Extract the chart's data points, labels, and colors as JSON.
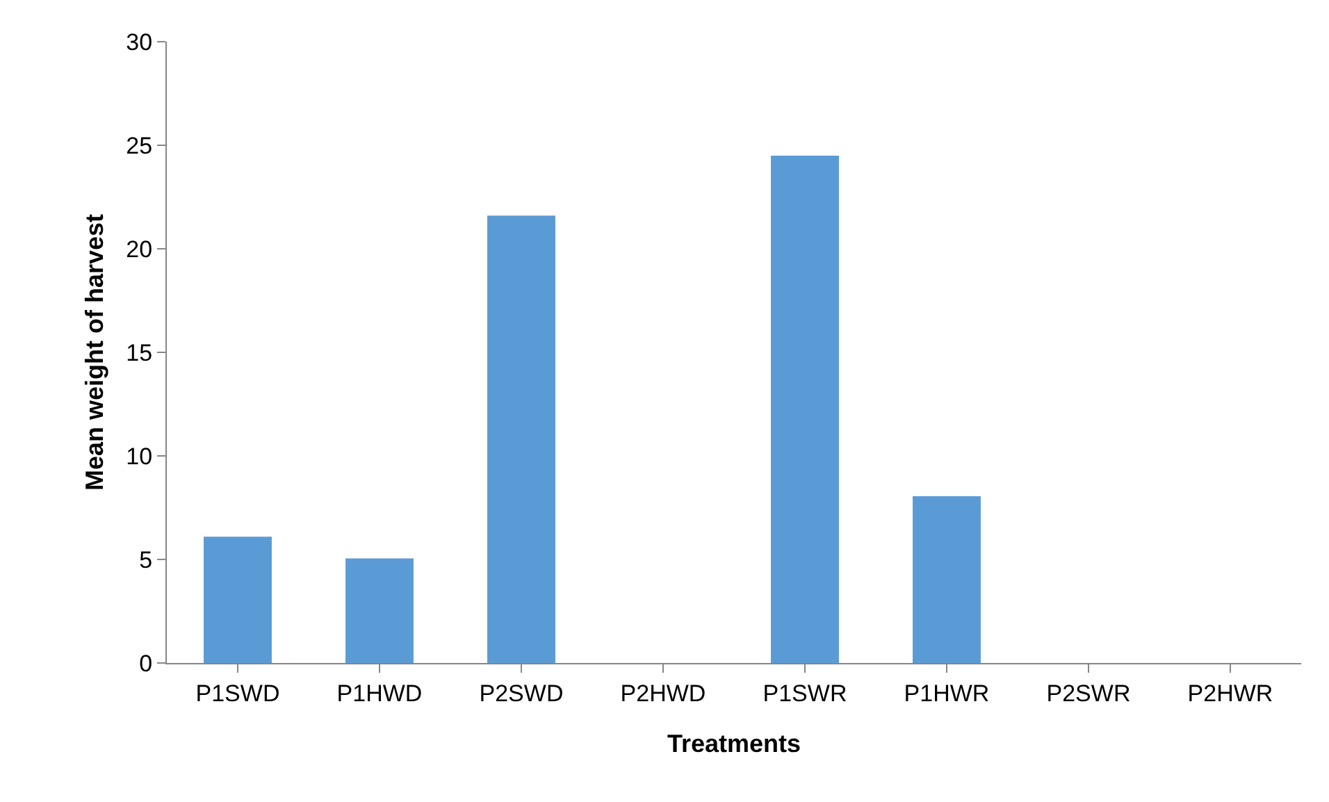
{
  "chart_data": {
    "type": "bar",
    "xlabel": "Treatments",
    "ylabel": "Mean weight of harvest",
    "categories": [
      "P1SWD",
      "P1HWD",
      "P2SWD",
      "P2HWD",
      "P1SWR",
      "P1HWR",
      "P2SWR",
      "P2HWR"
    ],
    "values": [
      6.1,
      5.05,
      21.6,
      0,
      24.5,
      8.05,
      0,
      0
    ],
    "color": "#5b9bd5",
    "ylim": [
      0,
      30
    ],
    "yticks": [
      0,
      5,
      10,
      15,
      20,
      25,
      30
    ],
    "legend": false
  }
}
